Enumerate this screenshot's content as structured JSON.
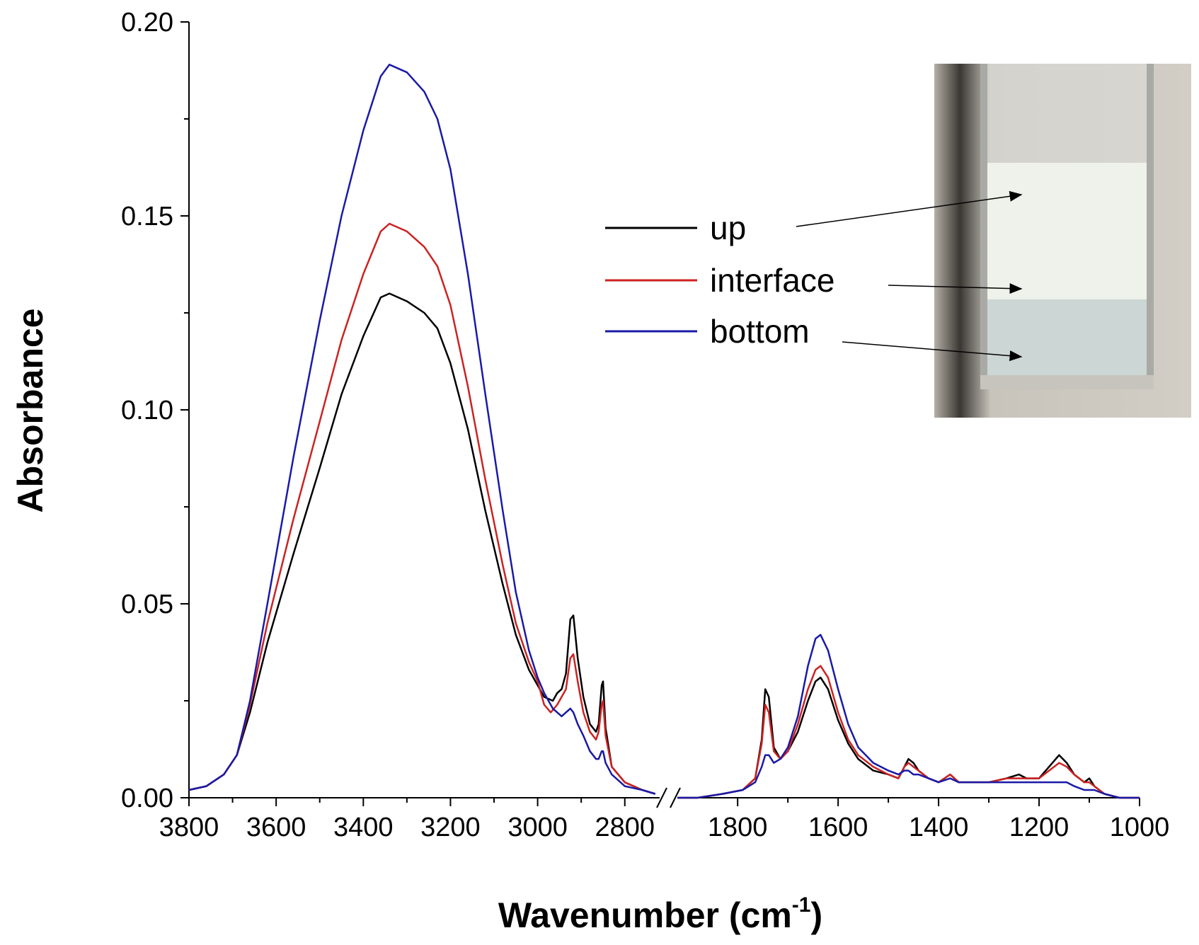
{
  "chart_data": {
    "type": "line",
    "xlabel": "Wavenumber (cm",
    "xlabel_sup": "-1",
    "xlabel_close": ")",
    "ylabel": "Absorbance",
    "ylim": [
      0,
      0.2
    ],
    "x_segments": [
      [
        3800,
        2720
      ],
      [
        1920,
        1000
      ]
    ],
    "x_axis_reversed": true,
    "axis_break": true,
    "grid": false,
    "legend_position": "top-right",
    "yticks": [
      "0.00",
      "0.05",
      "0.10",
      "0.15",
      "0.20"
    ],
    "xticks_left": [
      "3800",
      "3600",
      "3400",
      "3200",
      "3000",
      "2800"
    ],
    "xticks_right": [
      "1800",
      "1600",
      "1400",
      "1200",
      "1000"
    ],
    "inset": "photo of cuvette with layered emulsion (up, interface, bottom)",
    "series": [
      {
        "name": "up",
        "color": "#000000",
        "points": [
          [
            3800,
            0.002
          ],
          [
            3760,
            0.003
          ],
          [
            3720,
            0.006
          ],
          [
            3690,
            0.011
          ],
          [
            3660,
            0.022
          ],
          [
            3620,
            0.04
          ],
          [
            3560,
            0.063
          ],
          [
            3500,
            0.085
          ],
          [
            3450,
            0.104
          ],
          [
            3400,
            0.119
          ],
          [
            3360,
            0.129
          ],
          [
            3340,
            0.13
          ],
          [
            3300,
            0.128
          ],
          [
            3260,
            0.125
          ],
          [
            3230,
            0.121
          ],
          [
            3200,
            0.112
          ],
          [
            3160,
            0.095
          ],
          [
            3120,
            0.074
          ],
          [
            3080,
            0.055
          ],
          [
            3050,
            0.042
          ],
          [
            3020,
            0.033
          ],
          [
            3000,
            0.029
          ],
          [
            2985,
            0.026
          ],
          [
            2965,
            0.025
          ],
          [
            2955,
            0.027
          ],
          [
            2945,
            0.028
          ],
          [
            2935,
            0.032
          ],
          [
            2925,
            0.046
          ],
          [
            2918,
            0.047
          ],
          [
            2908,
            0.036
          ],
          [
            2895,
            0.026
          ],
          [
            2880,
            0.019
          ],
          [
            2866,
            0.017
          ],
          [
            2860,
            0.019
          ],
          [
            2853,
            0.029
          ],
          [
            2850,
            0.03
          ],
          [
            2844,
            0.018
          ],
          [
            2830,
            0.008
          ],
          [
            2800,
            0.004
          ],
          [
            2760,
            0.002
          ],
          [
            2730,
            0.001
          ],
          [
            1920,
            0.0
          ],
          [
            1880,
            0.0
          ],
          [
            1830,
            0.001
          ],
          [
            1790,
            0.002
          ],
          [
            1765,
            0.005
          ],
          [
            1752,
            0.015
          ],
          [
            1745,
            0.028
          ],
          [
            1738,
            0.026
          ],
          [
            1728,
            0.013
          ],
          [
            1715,
            0.01
          ],
          [
            1700,
            0.012
          ],
          [
            1680,
            0.017
          ],
          [
            1660,
            0.025
          ],
          [
            1645,
            0.03
          ],
          [
            1635,
            0.031
          ],
          [
            1620,
            0.028
          ],
          [
            1600,
            0.02
          ],
          [
            1580,
            0.014
          ],
          [
            1560,
            0.01
          ],
          [
            1530,
            0.007
          ],
          [
            1500,
            0.006
          ],
          [
            1480,
            0.005
          ],
          [
            1468,
            0.008
          ],
          [
            1460,
            0.01
          ],
          [
            1450,
            0.009
          ],
          [
            1440,
            0.007
          ],
          [
            1420,
            0.005
          ],
          [
            1400,
            0.004
          ],
          [
            1377,
            0.006
          ],
          [
            1360,
            0.004
          ],
          [
            1300,
            0.004
          ],
          [
            1265,
            0.005
          ],
          [
            1240,
            0.006
          ],
          [
            1225,
            0.005
          ],
          [
            1200,
            0.005
          ],
          [
            1180,
            0.008
          ],
          [
            1160,
            0.011
          ],
          [
            1145,
            0.009
          ],
          [
            1130,
            0.006
          ],
          [
            1110,
            0.004
          ],
          [
            1100,
            0.005
          ],
          [
            1090,
            0.003
          ],
          [
            1070,
            0.001
          ],
          [
            1040,
            0.0
          ],
          [
            1000,
            0.0
          ]
        ]
      },
      {
        "name": "interface",
        "color": "#cc2222",
        "points": [
          [
            3800,
            0.002
          ],
          [
            3760,
            0.003
          ],
          [
            3720,
            0.006
          ],
          [
            3690,
            0.011
          ],
          [
            3660,
            0.024
          ],
          [
            3620,
            0.045
          ],
          [
            3560,
            0.072
          ],
          [
            3500,
            0.097
          ],
          [
            3450,
            0.118
          ],
          [
            3400,
            0.135
          ],
          [
            3360,
            0.146
          ],
          [
            3340,
            0.148
          ],
          [
            3300,
            0.146
          ],
          [
            3260,
            0.142
          ],
          [
            3230,
            0.137
          ],
          [
            3200,
            0.127
          ],
          [
            3160,
            0.106
          ],
          [
            3120,
            0.082
          ],
          [
            3080,
            0.06
          ],
          [
            3050,
            0.045
          ],
          [
            3020,
            0.035
          ],
          [
            3000,
            0.03
          ],
          [
            2985,
            0.024
          ],
          [
            2970,
            0.022
          ],
          [
            2955,
            0.024
          ],
          [
            2945,
            0.026
          ],
          [
            2935,
            0.028
          ],
          [
            2925,
            0.036
          ],
          [
            2918,
            0.037
          ],
          [
            2908,
            0.03
          ],
          [
            2895,
            0.022
          ],
          [
            2880,
            0.017
          ],
          [
            2866,
            0.015
          ],
          [
            2860,
            0.017
          ],
          [
            2853,
            0.024
          ],
          [
            2850,
            0.025
          ],
          [
            2844,
            0.016
          ],
          [
            2830,
            0.008
          ],
          [
            2800,
            0.004
          ],
          [
            2760,
            0.002
          ],
          [
            2730,
            0.001
          ],
          [
            1920,
            0.0
          ],
          [
            1880,
            0.0
          ],
          [
            1830,
            0.001
          ],
          [
            1790,
            0.002
          ],
          [
            1765,
            0.005
          ],
          [
            1752,
            0.014
          ],
          [
            1745,
            0.024
          ],
          [
            1738,
            0.022
          ],
          [
            1728,
            0.012
          ],
          [
            1715,
            0.01
          ],
          [
            1700,
            0.012
          ],
          [
            1680,
            0.019
          ],
          [
            1660,
            0.028
          ],
          [
            1645,
            0.033
          ],
          [
            1635,
            0.034
          ],
          [
            1620,
            0.031
          ],
          [
            1600,
            0.022
          ],
          [
            1580,
            0.015
          ],
          [
            1560,
            0.011
          ],
          [
            1530,
            0.008
          ],
          [
            1500,
            0.006
          ],
          [
            1480,
            0.005
          ],
          [
            1468,
            0.008
          ],
          [
            1460,
            0.009
          ],
          [
            1450,
            0.008
          ],
          [
            1440,
            0.007
          ],
          [
            1420,
            0.005
          ],
          [
            1400,
            0.004
          ],
          [
            1377,
            0.006
          ],
          [
            1360,
            0.004
          ],
          [
            1300,
            0.004
          ],
          [
            1265,
            0.005
          ],
          [
            1240,
            0.005
          ],
          [
            1225,
            0.005
          ],
          [
            1200,
            0.005
          ],
          [
            1180,
            0.007
          ],
          [
            1160,
            0.009
          ],
          [
            1145,
            0.008
          ],
          [
            1130,
            0.006
          ],
          [
            1110,
            0.004
          ],
          [
            1100,
            0.004
          ],
          [
            1090,
            0.003
          ],
          [
            1070,
            0.001
          ],
          [
            1040,
            0.0
          ],
          [
            1000,
            0.0
          ]
        ]
      },
      {
        "name": "bottom",
        "color": "#1a1aa6",
        "points": [
          [
            3800,
            0.002
          ],
          [
            3760,
            0.003
          ],
          [
            3720,
            0.006
          ],
          [
            3690,
            0.011
          ],
          [
            3660,
            0.025
          ],
          [
            3620,
            0.05
          ],
          [
            3560,
            0.088
          ],
          [
            3500,
            0.123
          ],
          [
            3450,
            0.15
          ],
          [
            3400,
            0.172
          ],
          [
            3360,
            0.186
          ],
          [
            3340,
            0.189
          ],
          [
            3300,
            0.187
          ],
          [
            3260,
            0.182
          ],
          [
            3230,
            0.175
          ],
          [
            3200,
            0.162
          ],
          [
            3160,
            0.135
          ],
          [
            3120,
            0.104
          ],
          [
            3080,
            0.074
          ],
          [
            3050,
            0.053
          ],
          [
            3020,
            0.038
          ],
          [
            3000,
            0.031
          ],
          [
            2985,
            0.027
          ],
          [
            2965,
            0.023
          ],
          [
            2945,
            0.021
          ],
          [
            2935,
            0.022
          ],
          [
            2925,
            0.023
          ],
          [
            2918,
            0.022
          ],
          [
            2908,
            0.019
          ],
          [
            2895,
            0.016
          ],
          [
            2880,
            0.012
          ],
          [
            2866,
            0.01
          ],
          [
            2860,
            0.01
          ],
          [
            2853,
            0.012
          ],
          [
            2850,
            0.012
          ],
          [
            2844,
            0.009
          ],
          [
            2830,
            0.006
          ],
          [
            2800,
            0.003
          ],
          [
            2760,
            0.002
          ],
          [
            2730,
            0.001
          ],
          [
            1920,
            0.0
          ],
          [
            1880,
            0.0
          ],
          [
            1830,
            0.001
          ],
          [
            1790,
            0.002
          ],
          [
            1765,
            0.004
          ],
          [
            1752,
            0.008
          ],
          [
            1745,
            0.011
          ],
          [
            1738,
            0.011
          ],
          [
            1728,
            0.009
          ],
          [
            1715,
            0.01
          ],
          [
            1700,
            0.013
          ],
          [
            1680,
            0.021
          ],
          [
            1660,
            0.034
          ],
          [
            1645,
            0.041
          ],
          [
            1635,
            0.042
          ],
          [
            1620,
            0.038
          ],
          [
            1600,
            0.028
          ],
          [
            1580,
            0.019
          ],
          [
            1560,
            0.013
          ],
          [
            1530,
            0.009
          ],
          [
            1500,
            0.007
          ],
          [
            1480,
            0.006
          ],
          [
            1468,
            0.007
          ],
          [
            1460,
            0.007
          ],
          [
            1450,
            0.006
          ],
          [
            1440,
            0.006
          ],
          [
            1420,
            0.005
          ],
          [
            1400,
            0.004
          ],
          [
            1377,
            0.005
          ],
          [
            1360,
            0.004
          ],
          [
            1300,
            0.004
          ],
          [
            1265,
            0.004
          ],
          [
            1240,
            0.004
          ],
          [
            1225,
            0.004
          ],
          [
            1200,
            0.004
          ],
          [
            1180,
            0.004
          ],
          [
            1160,
            0.004
          ],
          [
            1145,
            0.004
          ],
          [
            1130,
            0.003
          ],
          [
            1110,
            0.002
          ],
          [
            1100,
            0.002
          ],
          [
            1090,
            0.002
          ],
          [
            1070,
            0.001
          ],
          [
            1040,
            0.0
          ],
          [
            1000,
            0.0
          ]
        ]
      }
    ]
  }
}
